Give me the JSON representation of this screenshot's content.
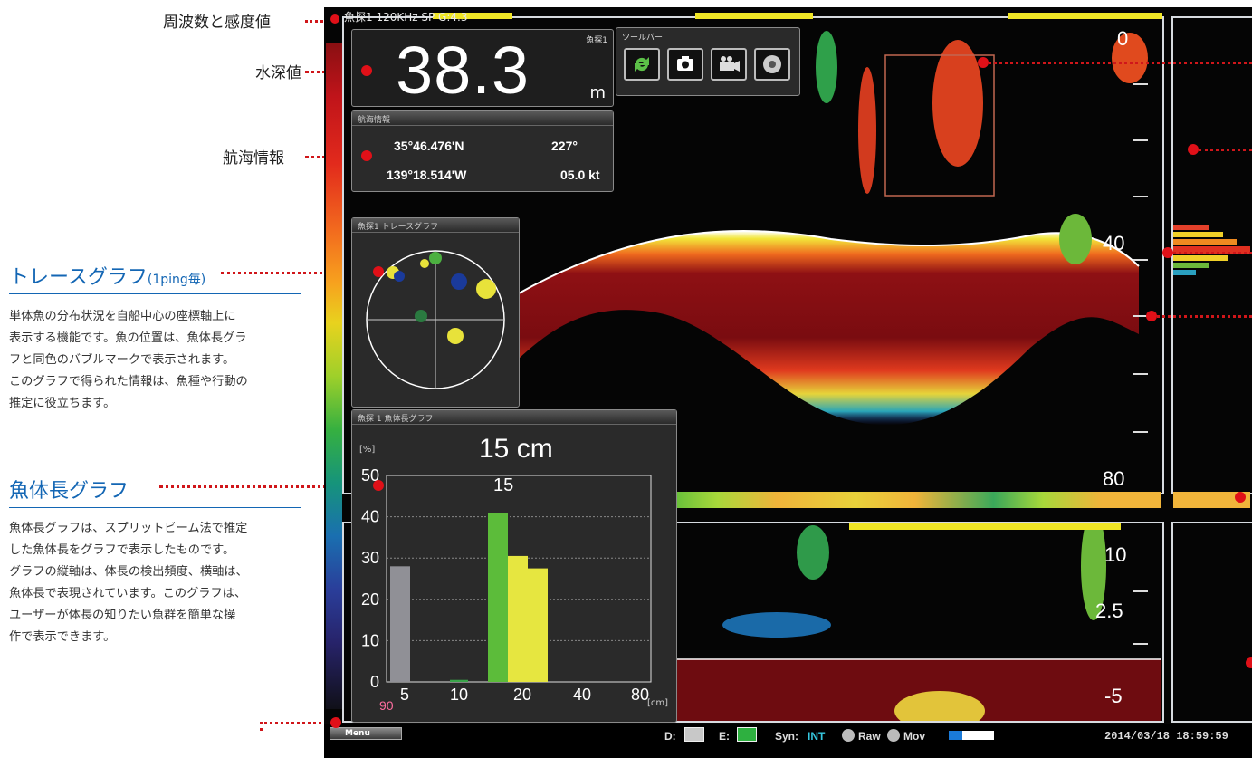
{
  "annotations": {
    "frequency_sensitivity": "周波数と感度値",
    "water_depth": "水深値",
    "navigation_info": "航海情報"
  },
  "trace_section": {
    "title": "トレースグラフ",
    "subtitle": "(1ping毎)",
    "description": [
      "単体魚の分布状況を自船中心の座標軸上に",
      "表示する機能です。魚の位置は、魚体長グラ",
      "フと同色のバブルマークで表示されます。",
      "このグラフで得られた情報は、魚種や行動の",
      "推定に役立ちます。"
    ]
  },
  "length_section": {
    "title": "魚体長グラフ",
    "description": [
      "魚体長グラフは、スプリットビーム法で推定",
      "した魚体長をグラフで表示したものです。",
      "グラフの縦軸は、体長の検出頻度、横軸は、",
      "魚体長で表現されています。このグラフは、",
      "ユーザーが体長の知りたい魚群を簡単な操",
      "作で表示できます。"
    ]
  },
  "screen": {
    "header_text": "魚探1 120KHz SP G:4.3",
    "depth_panel": {
      "value": "38.3",
      "unit": "m",
      "tag": "魚探1"
    },
    "nav_panel": {
      "title": "航海情報",
      "lat": "35°46.476'N",
      "heading": "227°",
      "lon": "139°18.514'W",
      "speed": "05.0 kt"
    },
    "toolbar": {
      "title": "ツールバー",
      "icons": [
        "refresh-icon",
        "camera-icon",
        "video-icon",
        "record-icon"
      ]
    },
    "trace_panel": {
      "title": "魚探1 トレースグラフ"
    },
    "length_panel": {
      "title": "魚探 1 魚体長グラフ",
      "headline": "15 cm",
      "peak_label": "15",
      "y_unit": "[%]",
      "x_unit": "[cm]",
      "count": "90"
    },
    "depth_scale_upper": [
      "0",
      "40",
      "80"
    ],
    "depth_scale_lower": [
      "10",
      "2.5",
      "-5"
    ],
    "status_bar": {
      "menu": "Menu",
      "d_label": "D:",
      "e_label": "E:",
      "syn_label": "Syn:",
      "syn_value": "INT",
      "raw_label": "Raw",
      "mov_label": "Mov",
      "datetime": "2014/03/18  18:59:59"
    }
  },
  "chart_data": {
    "type": "bar",
    "title": "15 cm",
    "ylabel": "[%]",
    "xlabel": "[cm]",
    "ylim": [
      0,
      50
    ],
    "x_ticks": [
      "5",
      "10",
      "20",
      "40",
      "80"
    ],
    "y_ticks": [
      "0",
      "10",
      "20",
      "30",
      "40",
      "50"
    ],
    "bars": [
      {
        "x_index": 0,
        "value": 28,
        "color": "#909096"
      },
      {
        "x_index": 1,
        "value": 0.5,
        "color": "#3aa44a"
      },
      {
        "x_index": 2,
        "value": 41,
        "color": "#5cbc3a"
      },
      {
        "x_index": 3,
        "value": 30.5,
        "color": "#e6e640"
      },
      {
        "x_index": 4,
        "value": 27.5,
        "color": "#e6e640"
      }
    ]
  },
  "colors": {
    "callout_red": "#e01018",
    "section_blue": "#1366b4",
    "yellow_bar": "#f0e626"
  }
}
